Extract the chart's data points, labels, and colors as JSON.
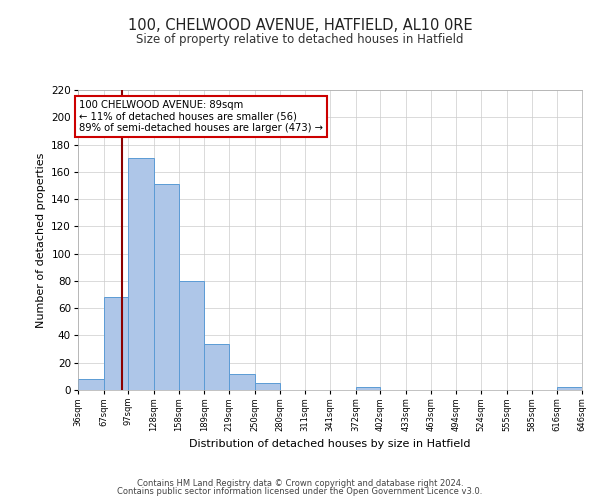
{
  "title": "100, CHELWOOD AVENUE, HATFIELD, AL10 0RE",
  "subtitle": "Size of property relative to detached houses in Hatfield",
  "xlabel": "Distribution of detached houses by size in Hatfield",
  "ylabel": "Number of detached properties",
  "bar_edges": [
    36,
    67,
    97,
    128,
    158,
    189,
    219,
    250,
    280,
    311,
    341,
    372,
    402,
    433,
    463,
    494,
    524,
    555,
    585,
    616,
    646
  ],
  "bar_heights": [
    8,
    68,
    170,
    151,
    80,
    34,
    12,
    5,
    0,
    0,
    0,
    2,
    0,
    0,
    0,
    0,
    0,
    0,
    0,
    2
  ],
  "bar_color": "#aec6e8",
  "bar_edge_color": "#5b9bd5",
  "property_line_x": 89,
  "property_line_color": "#8b0000",
  "ylim": [
    0,
    220
  ],
  "yticks": [
    0,
    20,
    40,
    60,
    80,
    100,
    120,
    140,
    160,
    180,
    200,
    220
  ],
  "annotation_text": "100 CHELWOOD AVENUE: 89sqm\n← 11% of detached houses are smaller (56)\n89% of semi-detached houses are larger (473) →",
  "grid_color": "#cccccc",
  "background_color": "#ffffff",
  "footer_line1": "Contains HM Land Registry data © Crown copyright and database right 2024.",
  "footer_line2": "Contains public sector information licensed under the Open Government Licence v3.0."
}
